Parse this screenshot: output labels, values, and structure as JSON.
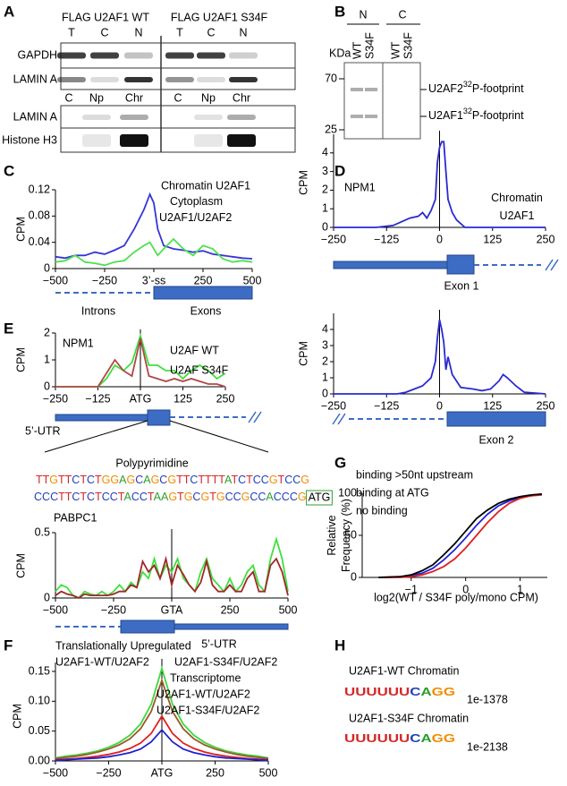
{
  "panel_letters": [
    "A",
    "B",
    "C",
    "D",
    "E",
    "F",
    "G",
    "H"
  ],
  "blot_a": {
    "construct_labels": [
      "FLAG U2AF1 WT",
      "FLAG U2AF1 S34F"
    ],
    "lanes_top": [
      "T",
      "C",
      "N",
      "T",
      "C",
      "N"
    ],
    "rows_top": [
      "GAPDH",
      "LAMIN A"
    ],
    "lanes_bottom": [
      "C",
      "Np",
      "Chr",
      "C",
      "Np",
      "Chr"
    ],
    "rows_bottom": [
      "LAMIN A",
      "Histone H3"
    ]
  },
  "gel_b": {
    "groups": [
      "N",
      "C"
    ],
    "lanes": [
      "WT",
      "S34F",
      "WT",
      "S34F"
    ],
    "unit": "KDa",
    "markers": [
      "70",
      "25"
    ],
    "bands": [
      {
        "name": "U2AF2",
        "isotope": "32",
        "suffix": "P-footprint"
      },
      {
        "name": "U2AF1",
        "isotope": "32",
        "suffix": "P-footprint"
      }
    ]
  },
  "sequence": {
    "title": "Polypyrimidine",
    "lines": [
      "TTGTTCTCTGGAGCAGCGTTCTTTTATCTCCGTCCG",
      "CCCTTCTCTCCTACCTAAGTGCGTGCCGCCACCCG"
    ],
    "start_codon": "ATG"
  },
  "motifs": [
    {
      "title": "U2AF1-WT Chromatin",
      "logo": "UUUUUUCAGG",
      "evalue": "1e-1378"
    },
    {
      "title": "U2AF1-S34F Chromatin",
      "logo": "UUUUUUCAGG",
      "evalue": "1e-2138"
    }
  ],
  "chart_data": [
    {
      "type": "line",
      "ylabel": "CPM",
      "xlim": [
        -500,
        500
      ],
      "xticks": [
        {
          "value": -500,
          "label": "−500"
        },
        {
          "value": -250,
          "label": "−250"
        },
        {
          "value": 0,
          "label": "3’-ss"
        },
        250,
        500
      ],
      "ylim": [
        0,
        0.12
      ],
      "yticks": [
        0,
        0.04,
        0.08,
        0.12
      ],
      "x": [
        -500,
        -450,
        -400,
        -350,
        -300,
        -250,
        -200,
        -150,
        -100,
        -50,
        -20,
        0,
        20,
        50,
        100,
        150,
        200,
        250,
        300,
        350,
        400,
        450,
        500
      ],
      "series": [
        {
          "name": "Chromatin U2AF1",
          "color": "#3535d8",
          "values": [
            0.018,
            0.016,
            0.02,
            0.02,
            0.025,
            0.022,
            0.028,
            0.035,
            0.06,
            0.09,
            0.113,
            0.1,
            0.06,
            0.035,
            0.03,
            0.028,
            0.025,
            0.027,
            0.022,
            0.02,
            0.018,
            0.016,
            0.015
          ]
        },
        {
          "name": "Cytoplasm U2AF1/U2AF2",
          "color": "#4fe04f",
          "values": [
            0.01,
            0.012,
            0.02,
            0.01,
            0.008,
            0.005,
            0.01,
            0.012,
            0.025,
            0.035,
            0.04,
            0.03,
            0.02,
            0.03,
            0.045,
            0.03,
            0.02,
            0.035,
            0.03,
            0.015,
            0.01,
            0.012,
            0.01
          ]
        }
      ],
      "annotations": [
        "Introns",
        "Exons"
      ]
    },
    {
      "type": "line",
      "ylabel": "CPM",
      "center_line": true,
      "xlim": [
        -250,
        250
      ],
      "xticks": [
        {
          "value": -250,
          "label": "−250"
        },
        {
          "value": -125,
          "label": "−125"
        },
        0,
        125,
        250
      ],
      "ylim": [
        0,
        5
      ],
      "yticks": [
        0,
        1,
        2,
        3,
        4
      ],
      "x": [
        -250,
        -200,
        -150,
        -110,
        -90,
        -70,
        -50,
        -40,
        -30,
        -20,
        -10,
        -5,
        0,
        5,
        10,
        15,
        20,
        30,
        40,
        50,
        60,
        100,
        150,
        200,
        250
      ],
      "series": [
        {
          "name": "Chromatin U2AF1",
          "color": "#2a2ad0",
          "values": [
            0,
            0,
            0,
            0.1,
            0.3,
            0.5,
            0.6,
            0.8,
            0.5,
            0.9,
            1.5,
            3.5,
            4.3,
            4.6,
            4.6,
            3,
            1.5,
            0.8,
            0.4,
            0.2,
            0,
            0,
            0,
            0,
            0
          ]
        }
      ],
      "annotations": [
        "NPM1",
        "Exon 1"
      ]
    },
    {
      "type": "line",
      "ylabel": "CPM",
      "center_line": true,
      "xlim": [
        -250,
        250
      ],
      "xticks": [
        {
          "value": -250,
          "label": "−250"
        },
        {
          "value": -125,
          "label": "−125"
        },
        0,
        125,
        250
      ],
      "ylim": [
        0,
        5
      ],
      "yticks": [
        0,
        1,
        2,
        3,
        4
      ],
      "x": [
        -250,
        -200,
        -150,
        -120,
        -100,
        -80,
        -60,
        -40,
        -20,
        -10,
        -5,
        0,
        5,
        10,
        15,
        20,
        30,
        50,
        80,
        100,
        120,
        140,
        150,
        160,
        180,
        200,
        250
      ],
      "series": [
        {
          "color": "#2a2ad0",
          "values": [
            0,
            0,
            0,
            0,
            0,
            0.1,
            0.3,
            0.5,
            1,
            2,
            3.5,
            4.6,
            4,
            3.2,
            1.5,
            2.3,
            1.2,
            0.4,
            0.3,
            0.2,
            0.3,
            0.8,
            1.2,
            1,
            0.5,
            0.1,
            0
          ]
        }
      ],
      "annotations": [
        "Exon 2"
      ]
    },
    {
      "type": "line",
      "ylabel": "CPM",
      "center_line": true,
      "xlim": [
        -250,
        250
      ],
      "xticks": [
        {
          "value": -250,
          "label": "−250"
        },
        {
          "value": -125,
          "label": "−125"
        },
        {
          "value": 0,
          "label": "ATG"
        },
        125,
        250
      ],
      "ylim": [
        0,
        2
      ],
      "yticks": [
        0,
        1,
        2
      ],
      "x": [
        -250,
        -225,
        -200,
        -175,
        -150,
        -125,
        -100,
        -75,
        -50,
        -25,
        0,
        25,
        50,
        75,
        100,
        125,
        150,
        175,
        200,
        225,
        250
      ],
      "series": [
        {
          "name": "U2AF WT",
          "color": "#3ee03e",
          "values": [
            0,
            0,
            0,
            0,
            0,
            0,
            0.3,
            0.8,
            0.6,
            0.9,
            1.9,
            0.8,
            0.8,
            0.6,
            0.6,
            0.3,
            0.6,
            0.8,
            0.6,
            0.3,
            0.5
          ]
        },
        {
          "name": "U2AF S34F",
          "color": "#b04848",
          "values": [
            0,
            0,
            0,
            0,
            0,
            0,
            0.5,
            1.0,
            0.6,
            0.4,
            1.8,
            0.4,
            0.3,
            0.2,
            0.3,
            0.2,
            0.3,
            0.2,
            0.1,
            0.1,
            0
          ]
        }
      ],
      "annotations": [
        "NPM1",
        "5’-UTR"
      ]
    },
    {
      "type": "line",
      "ylabel": "CPM",
      "center_line": true,
      "xlim": [
        -500,
        500
      ],
      "xticks": [
        {
          "value": -500,
          "label": "−500"
        },
        {
          "value": -250,
          "label": "−250"
        },
        {
          "value": 0,
          "label": "GTA"
        },
        250,
        500
      ],
      "ylim": [
        0,
        0.5
      ],
      "yticks": [
        0,
        0.5
      ],
      "x": [
        -500,
        -475,
        -450,
        -425,
        -400,
        -375,
        -350,
        -325,
        -300,
        -275,
        -250,
        -225,
        -200,
        -175,
        -150,
        -125,
        -100,
        -75,
        -50,
        -25,
        0,
        25,
        50,
        75,
        100,
        125,
        150,
        175,
        200,
        225,
        250,
        275,
        300,
        325,
        350,
        375,
        400,
        425,
        450,
        475,
        500
      ],
      "series": [
        {
          "color": "#3ee03e",
          "values": [
            0.05,
            0.1,
            0.08,
            0.02,
            0,
            0.05,
            0.03,
            0.02,
            0.05,
            0.02,
            0.05,
            0.1,
            0.05,
            0.12,
            0.08,
            0.2,
            0.15,
            0.3,
            0.15,
            0.25,
            0.2,
            0.3,
            0.15,
            0.1,
            0.05,
            0.2,
            0.3,
            0.15,
            0.1,
            0.05,
            0.15,
            0.05,
            0.1,
            0.2,
            0.25,
            0.1,
            0.05,
            0.3,
            0.45,
            0.3,
            0.05
          ]
        },
        {
          "color": "#a02828",
          "values": [
            0.02,
            0.05,
            0.03,
            0.02,
            0,
            0.03,
            0.02,
            0.02,
            0.02,
            0.02,
            0.03,
            0.05,
            0.05,
            0.1,
            0.08,
            0.28,
            0.2,
            0.25,
            0.15,
            0.3,
            0.1,
            0.25,
            0.18,
            0.1,
            0.05,
            0.12,
            0.28,
            0.1,
            0.05,
            0.05,
            0.1,
            0.05,
            0.05,
            0.15,
            0.2,
            0.05,
            0.05,
            0.25,
            0.3,
            0.2,
            0.02
          ]
        }
      ],
      "annotations": [
        "PABPC1",
        "5’-UTR"
      ]
    },
    {
      "type": "line",
      "xlabel": "log2(WT / S34F poly/mono CPM)",
      "ylabel": "Relative Frequency (%)",
      "xlim": [
        -1.9,
        1.5
      ],
      "xticks": [
        {
          "value": -1,
          "label": "−1"
        },
        0,
        1
      ],
      "ylim": [
        0,
        100
      ],
      "yticks": [
        0,
        50,
        100
      ],
      "x": [
        -1.6,
        -1.4,
        -1.2,
        -1.0,
        -0.8,
        -0.6,
        -0.4,
        -0.2,
        0,
        0.2,
        0.4,
        0.6,
        0.8,
        1.0,
        1.2,
        1.4
      ],
      "series": [
        {
          "name": "binding >50nt upstream",
          "color": "#2020e0",
          "values": [
            0,
            0,
            1,
            2,
            5,
            11,
            21,
            33,
            47,
            62,
            75,
            85,
            91,
            95,
            97,
            99
          ]
        },
        {
          "name": "binding at ATG",
          "color": "#e02020",
          "values": [
            0,
            0,
            0,
            1,
            3,
            7,
            13,
            22,
            35,
            50,
            65,
            78,
            88,
            94,
            97,
            98
          ]
        },
        {
          "name": "no binding",
          "color": "#000000",
          "values": [
            0,
            0.5,
            1,
            3,
            8,
            15,
            27,
            40,
            55,
            70,
            80,
            88,
            93,
            96,
            98,
            99
          ]
        }
      ]
    },
    {
      "type": "line",
      "ylabel": "CPM",
      "center_line": true,
      "legend_titles": [
        "Translationally Upregulated",
        "Transcriptome"
      ],
      "xlim": [
        -500,
        500
      ],
      "xticks": [
        {
          "value": -500,
          "label": "−500"
        },
        {
          "value": -250,
          "label": "−250"
        },
        {
          "value": 0,
          "label": "ATG"
        },
        250,
        500
      ],
      "ylim": [
        0,
        0.165
      ],
      "yticks": [
        {
          "value": 0,
          "label": "0.00"
        },
        0.05,
        {
          "value": 0.1,
          "label": "0.10"
        },
        0.15
      ],
      "x": [
        -500,
        -450,
        -400,
        -350,
        -300,
        -250,
        -200,
        -150,
        -100,
        -50,
        0,
        50,
        100,
        150,
        200,
        250,
        300,
        350,
        400,
        450,
        500
      ],
      "series": [
        {
          "name": "U2AF1-WT/U2AF2",
          "group": 0,
          "color": "#3ed83e",
          "values": [
            0.005,
            0.008,
            0.01,
            0.013,
            0.017,
            0.023,
            0.031,
            0.043,
            0.062,
            0.095,
            0.155,
            0.095,
            0.062,
            0.043,
            0.031,
            0.023,
            0.017,
            0.013,
            0.01,
            0.008,
            0.005
          ]
        },
        {
          "name": "U2AF1-S34F/U2AF2",
          "group": 0,
          "color": "#9a5a2a",
          "values": [
            0.004,
            0.006,
            0.008,
            0.011,
            0.015,
            0.02,
            0.027,
            0.037,
            0.054,
            0.083,
            0.135,
            0.083,
            0.054,
            0.037,
            0.027,
            0.02,
            0.015,
            0.011,
            0.008,
            0.006,
            0.004
          ]
        },
        {
          "name": "U2AF1-WT/U2AF2",
          "group": 1,
          "color": "#e02020",
          "values": [
            0.002,
            0.003,
            0.004,
            0.006,
            0.008,
            0.011,
            0.015,
            0.021,
            0.03,
            0.046,
            0.075,
            0.046,
            0.03,
            0.021,
            0.015,
            0.011,
            0.008,
            0.006,
            0.004,
            0.003,
            0.002
          ]
        },
        {
          "name": "U2AF1-S34F/U2AF2",
          "group": 1,
          "color": "#2020d0",
          "values": [
            0.001,
            0.002,
            0.003,
            0.004,
            0.005,
            0.007,
            0.01,
            0.014,
            0.02,
            0.032,
            0.052,
            0.032,
            0.02,
            0.014,
            0.01,
            0.007,
            0.005,
            0.004,
            0.003,
            0.002,
            0.001
          ]
        }
      ]
    }
  ]
}
